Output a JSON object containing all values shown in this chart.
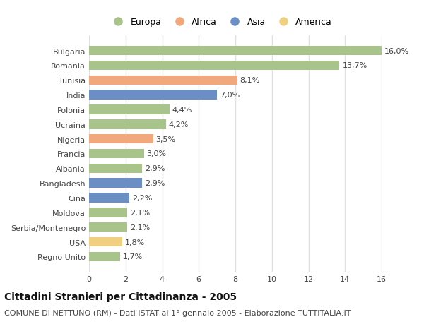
{
  "countries": [
    "Bulgaria",
    "Romania",
    "Tunisia",
    "India",
    "Polonia",
    "Ucraina",
    "Nigeria",
    "Francia",
    "Albania",
    "Bangladesh",
    "Cina",
    "Moldova",
    "Serbia/Montenegro",
    "USA",
    "Regno Unito"
  ],
  "values": [
    16.0,
    13.7,
    8.1,
    7.0,
    4.4,
    4.2,
    3.5,
    3.0,
    2.9,
    2.9,
    2.2,
    2.1,
    2.1,
    1.8,
    1.7
  ],
  "labels": [
    "16,0%",
    "13,7%",
    "8,1%",
    "7,0%",
    "4,4%",
    "4,2%",
    "3,5%",
    "3,0%",
    "2,9%",
    "2,9%",
    "2,2%",
    "2,1%",
    "2,1%",
    "1,8%",
    "1,7%"
  ],
  "continents": [
    "Europa",
    "Europa",
    "Africa",
    "Asia",
    "Europa",
    "Europa",
    "Africa",
    "Europa",
    "Europa",
    "Asia",
    "Asia",
    "Europa",
    "Europa",
    "America",
    "Europa"
  ],
  "colors": {
    "Europa": "#a8c48a",
    "Africa": "#f0a87c",
    "Asia": "#6b8ec4",
    "America": "#f0d080"
  },
  "legend_order": [
    "Europa",
    "Africa",
    "Asia",
    "America"
  ],
  "xlim": [
    0,
    16
  ],
  "xticks": [
    0,
    2,
    4,
    6,
    8,
    10,
    12,
    14,
    16
  ],
  "title": "Cittadini Stranieri per Cittadinanza - 2005",
  "subtitle": "COMUNE DI NETTUNO (RM) - Dati ISTAT al 1° gennaio 2005 - Elaborazione TUTTITALIA.IT",
  "plot_bg_color": "#ffffff",
  "fig_bg_color": "#ffffff",
  "bar_height": 0.65,
  "label_fontsize": 8,
  "tick_fontsize": 8,
  "title_fontsize": 10,
  "subtitle_fontsize": 8,
  "grid_color": "#e0e0e0",
  "text_color": "#444444"
}
